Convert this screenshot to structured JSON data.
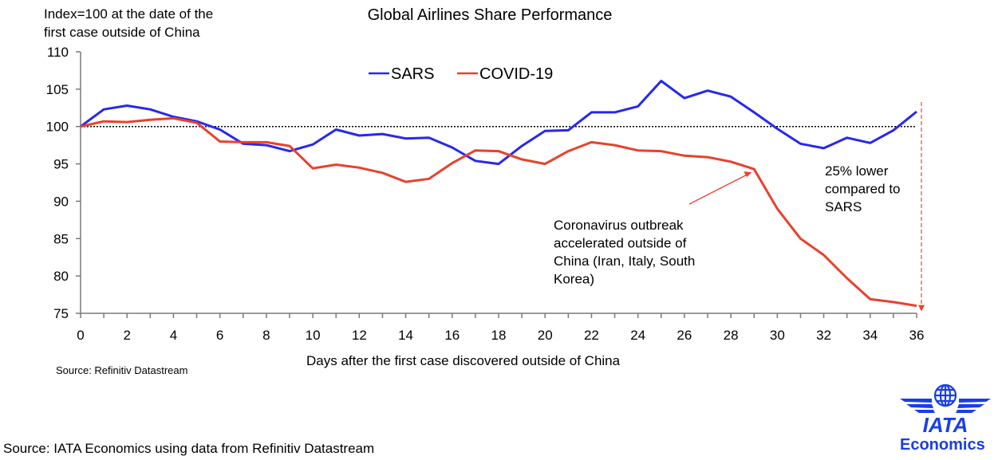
{
  "chart_data": {
    "type": "line",
    "title": "Global Airlines Share Performance",
    "ylabel": "Index=100 at the date of the\nfirst case  outside of China",
    "xlabel": "Days after the first case discovered outside of China",
    "ylim": [
      75,
      110
    ],
    "xlim": [
      0,
      36
    ],
    "yticks": [
      75,
      80,
      85,
      90,
      95,
      100,
      105,
      110
    ],
    "xticks_labeled": [
      0,
      2,
      4,
      6,
      8,
      10,
      12,
      14,
      16,
      18,
      20,
      22,
      24,
      26,
      28,
      30,
      32,
      34,
      36
    ],
    "reference_line": {
      "y": 100,
      "style": "dotted"
    },
    "legend_position": "top-center",
    "x": [
      0,
      1,
      2,
      3,
      4,
      5,
      6,
      7,
      8,
      9,
      10,
      11,
      12,
      13,
      14,
      15,
      16,
      17,
      18,
      19,
      20,
      21,
      22,
      23,
      24,
      25,
      26,
      27,
      28,
      29,
      30,
      31,
      32,
      33,
      34,
      35,
      36
    ],
    "series": [
      {
        "name": "SARS",
        "color": "#2727f0",
        "values": [
          100,
          102.3,
          102.8,
          102.3,
          101.3,
          100.7,
          99.6,
          97.7,
          97.5,
          96.7,
          97.6,
          99.6,
          98.8,
          99.0,
          98.4,
          98.5,
          97.2,
          95.4,
          95.0,
          97.4,
          99.4,
          99.5,
          101.9,
          101.9,
          102.7,
          106.1,
          103.8,
          104.8,
          104.0,
          101.9,
          99.7,
          97.7,
          97.1,
          98.5,
          97.8,
          99.5,
          102.0
        ]
      },
      {
        "name": "COVID-19",
        "color": "#e8412d",
        "values": [
          100,
          100.7,
          100.6,
          100.9,
          101.1,
          100.5,
          98.0,
          97.9,
          97.9,
          97.4,
          94.4,
          94.9,
          94.5,
          93.8,
          92.6,
          93.0,
          95.1,
          96.8,
          96.7,
          95.6,
          95.0,
          96.7,
          97.9,
          97.5,
          96.8,
          96.7,
          96.1,
          95.9,
          95.3,
          94.3,
          89.0,
          85.0,
          82.8,
          79.7,
          76.9,
          76.5,
          76.0
        ]
      }
    ],
    "annotations": [
      {
        "text": "Coronavirus outbreak\naccelerated outside of\nChina (Iran, Italy, South\nKorea)",
        "arrow_to": {
          "x": 29,
          "y": 94.3
        }
      },
      {
        "text": "25%  lower\ncompared to\nSARS",
        "dashed_arrow": {
          "x": 36,
          "from": 102.0,
          "to": 76.0
        }
      }
    ]
  },
  "source_small": "Source: Refinitiv Datastream",
  "source_main": "Source: IATA Economics using data from Refinitiv Datastream",
  "logo": {
    "name": "IATA",
    "subtitle": "Economics",
    "color": "#1a3ee6"
  }
}
